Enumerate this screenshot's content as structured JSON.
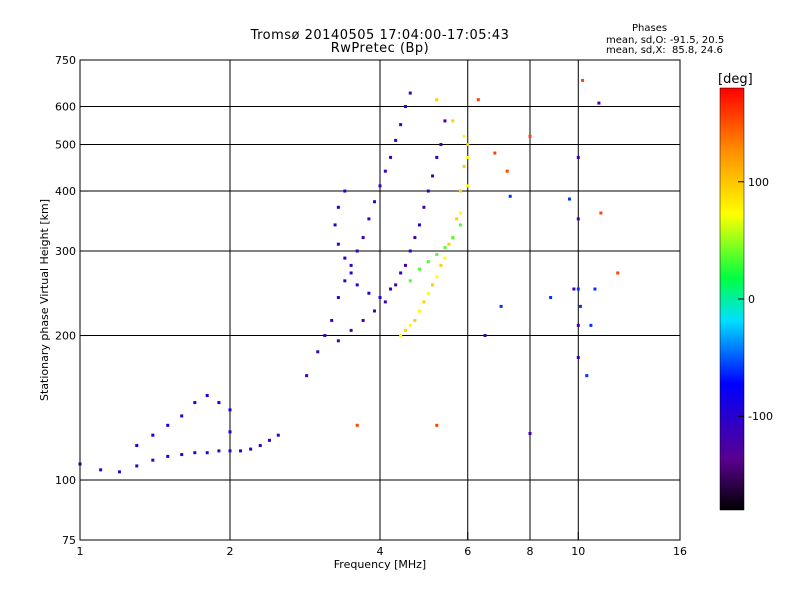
{
  "title_line1": "Tromsø 20140505 17:04:00-17:05:43",
  "title_line2": "RwPretec (Bp)",
  "stats": {
    "heading": "Phases",
    "line_o": "mean, sd,O: -91.5, 20.5",
    "line_x": "mean, sd,X:  85.8, 24.6"
  },
  "chart_data": {
    "type": "scatter",
    "xlabel": "Frequency [MHz]",
    "ylabel": "Stationary phase Virtual Height [km]",
    "xscale": "log",
    "yscale": "log",
    "xlim": [
      1,
      16
    ],
    "ylim": [
      75,
      750
    ],
    "xticks": [
      1,
      2,
      4,
      6,
      8,
      10,
      16
    ],
    "xtick_labels": [
      "1",
      "2",
      "4",
      "6",
      "8",
      "10",
      "16"
    ],
    "yticks": [
      75,
      100,
      200,
      300,
      400,
      500,
      600,
      750
    ],
    "ytick_labels": [
      "75",
      "100",
      "200",
      "300",
      "400",
      "500",
      "600",
      "750"
    ],
    "x_gridlines": [
      2,
      4,
      6,
      8,
      10
    ],
    "y_gridlines": [
      100,
      200,
      300,
      400,
      500,
      600
    ],
    "grid": true,
    "colorbar": {
      "label": "[deg]",
      "range": [
        -180,
        180
      ],
      "ticks": [
        100,
        0,
        -100
      ],
      "tick_labels": [
        "100",
        "0",
        "-100"
      ]
    },
    "traces": [
      {
        "name": "",
        "phase": -105,
        "points": [
          [
            1.0,
            108
          ],
          [
            1.1,
            105
          ],
          [
            1.2,
            104
          ],
          [
            1.3,
            107
          ],
          [
            1.4,
            110
          ],
          [
            1.5,
            112
          ],
          [
            1.6,
            113
          ],
          [
            1.7,
            114
          ],
          [
            1.8,
            114
          ],
          [
            1.9,
            115
          ],
          [
            2.0,
            115
          ],
          [
            2.1,
            115
          ],
          [
            2.2,
            116
          ],
          [
            2.3,
            118
          ],
          [
            2.4,
            121
          ],
          [
            2.5,
            124
          ]
        ]
      },
      {
        "name": "",
        "phase": -88,
        "points": [
          [
            1.3,
            118
          ],
          [
            1.4,
            124
          ],
          [
            1.5,
            130
          ],
          [
            1.6,
            136
          ],
          [
            1.7,
            145
          ],
          [
            1.8,
            150
          ],
          [
            1.9,
            145
          ],
          [
            2.0,
            140
          ],
          [
            2.0,
            126
          ]
        ]
      },
      {
        "name": "",
        "phase": -112,
        "points": [
          [
            2.85,
            165
          ],
          [
            3.0,
            185
          ],
          [
            3.1,
            200
          ],
          [
            3.2,
            215
          ],
          [
            3.3,
            240
          ],
          [
            3.4,
            260
          ],
          [
            3.5,
            280
          ],
          [
            3.6,
            300
          ],
          [
            3.7,
            320
          ],
          [
            3.8,
            350
          ],
          [
            3.9,
            380
          ],
          [
            4.0,
            410
          ],
          [
            4.1,
            440
          ],
          [
            4.2,
            470
          ],
          [
            4.3,
            510
          ],
          [
            4.4,
            550
          ],
          [
            4.5,
            600
          ],
          [
            4.6,
            640
          ]
        ]
      },
      {
        "name": "",
        "phase": -100,
        "points": [
          [
            3.4,
            400
          ],
          [
            3.3,
            370
          ],
          [
            3.25,
            340
          ],
          [
            3.3,
            310
          ],
          [
            3.4,
            290
          ],
          [
            3.5,
            270
          ],
          [
            3.6,
            255
          ],
          [
            3.8,
            245
          ],
          [
            4.0,
            240
          ],
          [
            4.2,
            250
          ],
          [
            4.4,
            270
          ],
          [
            4.6,
            300
          ],
          [
            4.8,
            340
          ],
          [
            5.0,
            400
          ],
          [
            5.2,
            470
          ]
        ]
      },
      {
        "name": "",
        "phase": -120,
        "points": [
          [
            3.3,
            195
          ],
          [
            3.5,
            205
          ],
          [
            3.7,
            215
          ],
          [
            3.9,
            225
          ],
          [
            4.1,
            235
          ],
          [
            4.3,
            255
          ],
          [
            4.5,
            280
          ],
          [
            4.7,
            320
          ],
          [
            4.9,
            370
          ],
          [
            5.1,
            430
          ],
          [
            5.3,
            500
          ],
          [
            5.4,
            560
          ]
        ]
      },
      {
        "name": "",
        "phase": 72,
        "points": [
          [
            4.4,
            200
          ],
          [
            4.6,
            210
          ],
          [
            4.8,
            225
          ],
          [
            5.0,
            245
          ],
          [
            5.2,
            265
          ],
          [
            5.4,
            290
          ],
          [
            5.6,
            320
          ],
          [
            5.8,
            360
          ],
          [
            6.0,
            410
          ],
          [
            6.0,
            470
          ],
          [
            5.9,
            520
          ]
        ]
      },
      {
        "name": "",
        "phase": 95,
        "points": [
          [
            4.5,
            205
          ],
          [
            4.7,
            215
          ],
          [
            4.9,
            235
          ],
          [
            5.1,
            255
          ],
          [
            5.3,
            280
          ],
          [
            5.5,
            310
          ],
          [
            5.7,
            350
          ],
          [
            5.8,
            400
          ],
          [
            5.9,
            450
          ],
          [
            6.0,
            500
          ],
          [
            5.6,
            560
          ],
          [
            5.2,
            620
          ]
        ]
      },
      {
        "name": "",
        "phase": 35,
        "points": [
          [
            4.6,
            260
          ],
          [
            4.8,
            275
          ],
          [
            5.0,
            285
          ],
          [
            5.2,
            295
          ],
          [
            5.4,
            305
          ],
          [
            5.6,
            320
          ],
          [
            5.8,
            340
          ]
        ]
      },
      {
        "name": "",
        "phase": 155,
        "points": [
          [
            6.3,
            620
          ],
          [
            6.8,
            480
          ],
          [
            7.2,
            440
          ],
          [
            10.2,
            680
          ],
          [
            12.0,
            270
          ],
          [
            11.1,
            360
          ],
          [
            8.0,
            520
          ],
          [
            5.2,
            130
          ],
          [
            3.6,
            130
          ]
        ]
      },
      {
        "name": "",
        "phase": -60,
        "points": [
          [
            7.0,
            230
          ],
          [
            7.3,
            390
          ],
          [
            9.6,
            385
          ],
          [
            10.0,
            250
          ],
          [
            10.1,
            230
          ],
          [
            10.8,
            250
          ],
          [
            8.8,
            240
          ],
          [
            10.6,
            210
          ],
          [
            10.4,
            165
          ]
        ]
      },
      {
        "name": "",
        "phase": -118,
        "points": [
          [
            10.0,
            470
          ],
          [
            10.0,
            350
          ],
          [
            10.0,
            180
          ],
          [
            10.0,
            210
          ],
          [
            8.0,
            125
          ],
          [
            11.0,
            610
          ],
          [
            9.8,
            250
          ],
          [
            6.5,
            200
          ]
        ]
      }
    ]
  }
}
